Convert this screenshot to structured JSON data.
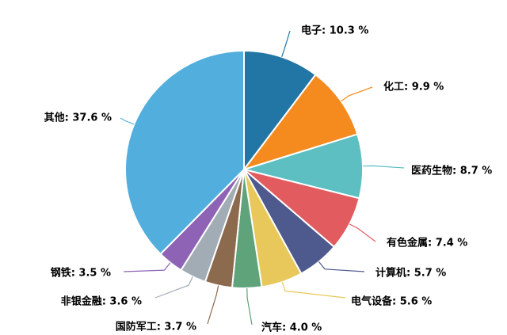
{
  "chart_data": {
    "type": "pie",
    "slices": [
      {
        "category": "电子",
        "value": 10.3,
        "label": "电子: 10.3 %",
        "color": "#2276A6"
      },
      {
        "category": "化工",
        "value": 9.9,
        "label": "化工: 9.9 %",
        "color": "#F58A1F"
      },
      {
        "category": "医药生物",
        "value": 8.7,
        "label": "医药生物: 8.7 %",
        "color": "#5EBFC2"
      },
      {
        "category": "有色金属",
        "value": 7.4,
        "label": "有色金属: 7.4 %",
        "color": "#E15B5F"
      },
      {
        "category": "计算机",
        "value": 5.7,
        "label": "计算机: 5.7 %",
        "color": "#4E5A8E"
      },
      {
        "category": "电气设备",
        "value": 5.6,
        "label": "电气设备: 5.6 %",
        "color": "#E8C85A"
      },
      {
        "category": "汽车",
        "value": 4.0,
        "label": "汽车: 4.0 %",
        "color": "#5EA37A"
      },
      {
        "category": "国防军工",
        "value": 3.7,
        "label": "国防军工: 3.7 %",
        "color": "#8C6A4E"
      },
      {
        "category": "非银金融",
        "value": 3.6,
        "label": "非银金融: 3.6 %",
        "color": "#A2ACB5"
      },
      {
        "category": "钢铁",
        "value": 3.5,
        "label": "钢铁: 3.5 %",
        "color": "#8E62B5"
      },
      {
        "category": "其他",
        "value": 37.6,
        "label": "其他: 37.6 %",
        "color": "#52AEDD"
      }
    ]
  }
}
